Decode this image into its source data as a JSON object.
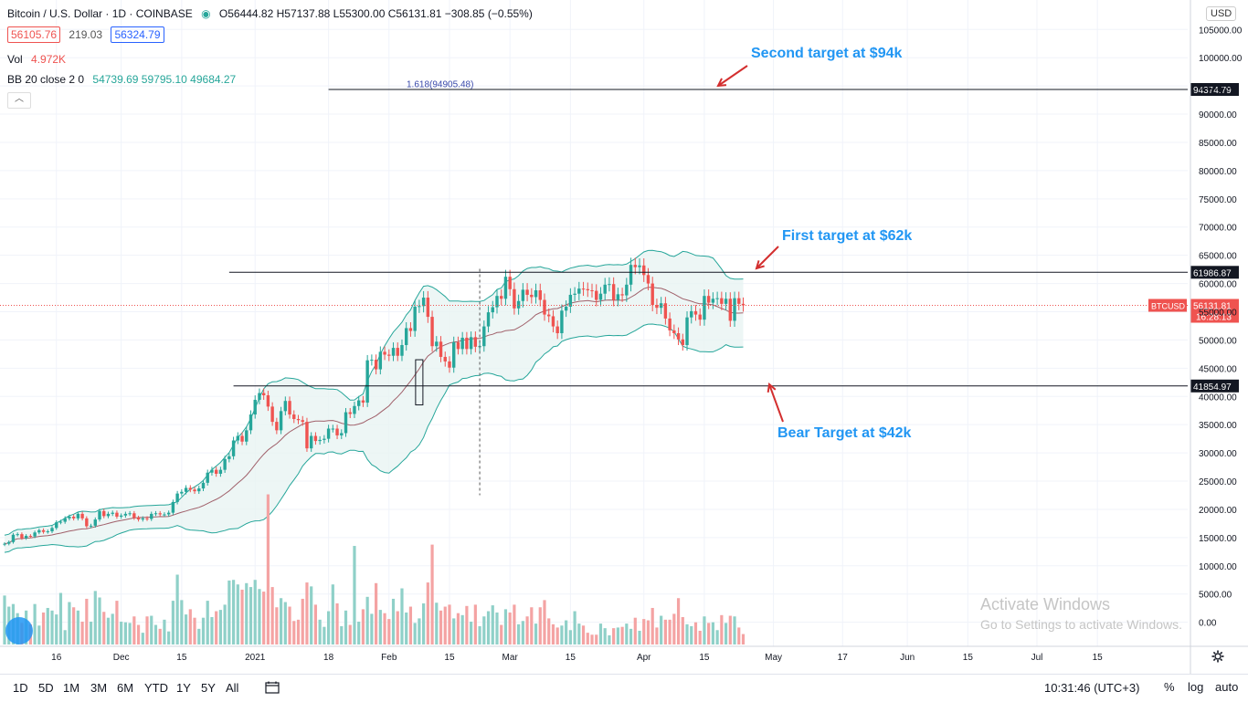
{
  "header": {
    "symbol": "Bitcoin / U.S. Dollar · 1D · COINBASE",
    "ohlc": "O56444.82  H57137.88  L55300.00  C56131.81  −308.85 (−0.55%)",
    "bid": "56105.76",
    "spread": "219.03",
    "ask": "56324.79",
    "vol_label": "Vol",
    "vol_value": "4.972K",
    "bb_label": "BB 20 close 2 0",
    "bb_values": "54739.69  59795.10  49684.27",
    "collapse_glyph": "︿",
    "currency": "USD"
  },
  "toolbar": {
    "timeframes": [
      "1D",
      "5D",
      "1M",
      "3M",
      "6M",
      "YTD",
      "1Y",
      "5Y",
      "All"
    ],
    "clock": "10:31:46 (UTC+3)",
    "percent": "%",
    "log": "log",
    "auto": "auto"
  },
  "watermark": {
    "line1": "Activate Windows",
    "line2": "Go to Settings to activate Windows."
  },
  "colors": {
    "up": "#26a69a",
    "down": "#ef5350",
    "band_fill": "#e8f4f2",
    "band_line": "#26a69a",
    "basis": "#a0606a",
    "annotation": "#2196f3",
    "arrow": "#d32f2f",
    "level": "#131722",
    "fib": "#3949ab"
  },
  "chart_data": {
    "type": "candlestick",
    "pair": "BTCUSD",
    "ylim": [
      -3000,
      107000
    ],
    "y_ticks": [
      "105000.00",
      "100000.00",
      "95000.00",
      "90000.00",
      "85000.00",
      "80000.00",
      "75000.00",
      "70000.00",
      "65000.00",
      "60000.00",
      "55000.00",
      "50000.00",
      "45000.00",
      "40000.00",
      "35000.00",
      "30000.00",
      "25000.00",
      "20000.00",
      "15000.00",
      "10000.00",
      "5000.00",
      "0.00"
    ],
    "x_ticks": [
      {
        "label": "16",
        "date": "2020-11-16"
      },
      {
        "label": "Dec",
        "date": "2020-12-01"
      },
      {
        "label": "15",
        "date": "2020-12-15"
      },
      {
        "label": "2021",
        "date": "2021-01-01"
      },
      {
        "label": "18",
        "date": "2021-01-18"
      },
      {
        "label": "Feb",
        "date": "2021-02-01"
      },
      {
        "label": "15",
        "date": "2021-02-15"
      },
      {
        "label": "Mar",
        "date": "2021-03-01"
      },
      {
        "label": "15",
        "date": "2021-03-15"
      },
      {
        "label": "Apr",
        "date": "2021-04-01"
      },
      {
        "label": "15",
        "date": "2021-04-15"
      },
      {
        "label": "May",
        "date": "2021-05-01"
      },
      {
        "label": "17",
        "date": "2021-05-17"
      },
      {
        "label": "Jun",
        "date": "2021-06-01"
      },
      {
        "label": "15",
        "date": "2021-06-15"
      },
      {
        "label": "Jul",
        "date": "2021-07-01"
      },
      {
        "label": "15",
        "date": "2021-07-15"
      }
    ],
    "start_date": "2020-11-04",
    "close": [
      13900,
      14200,
      15500,
      15600,
      14900,
      15300,
      15200,
      15900,
      16300,
      16000,
      16100,
      16700,
      17700,
      17800,
      18400,
      18700,
      18400,
      19200,
      18400,
      17000,
      17100,
      18200,
      19700,
      18800,
      19200,
      19400,
      18700,
      18900,
      19200,
      19300,
      18500,
      18200,
      18400,
      18300,
      19200,
      19300,
      19100,
      19100,
      19400,
      21300,
      22800,
      23100,
      23800,
      23500,
      23200,
      23700,
      24700,
      26500,
      27000,
      26300,
      27000,
      28900,
      29400,
      32200,
      33000,
      32000,
      34000,
      36800,
      39400,
      40600,
      40200,
      38200,
      35500,
      34000,
      37400,
      39200,
      36800,
      36000,
      35800,
      35500,
      30800,
      33000,
      32100,
      32300,
      32500,
      34300,
      34300,
      33100,
      33500,
      37200,
      36900,
      38300,
      39300,
      38900,
      46400,
      46500,
      44800,
      47900,
      47400,
      47200,
      48600,
      47200,
      49100,
      52100,
      51600,
      55900,
      56000,
      57500,
      54100,
      48900,
      49700,
      47000,
      46200,
      45100,
      49600,
      48400,
      50400,
      48400,
      50500,
      48800,
      48900,
      52400,
      54900,
      55800,
      57800,
      57300,
      61200,
      59000,
      55600,
      56900,
      58900,
      58000,
      57600,
      58800,
      57100,
      54500,
      54200,
      52400,
      51200,
      55200,
      55900,
      58000,
      58200,
      59100,
      59000,
      58800,
      58700,
      57100,
      58200,
      59800,
      59900,
      57100,
      58100,
      57900,
      59800,
      63300,
      62900,
      63200,
      61500,
      60000,
      56200,
      55700,
      56500,
      53800,
      51700,
      51200,
      50100,
      49100,
      54000,
      55100,
      54500,
      53600,
      57800,
      56600,
      57300,
      57400,
      56400,
      57300,
      53400,
      57400,
      56400,
      56131
    ],
    "volume": [
      7500,
      5800,
      6200,
      4800,
      3300,
      5200,
      3100,
      6200,
      2900,
      4900,
      5600,
      5200,
      4600,
      7900,
      2200,
      6500,
      5700,
      5200,
      3500,
      7000,
      3500,
      8200,
      7200,
      5000,
      4100,
      4700,
      6700,
      3500,
      3400,
      3300,
      4300,
      3000,
      1800,
      4300,
      4400,
      3000,
      2400,
      3800,
      2000,
      6700,
      10700,
      6800,
      4600,
      5400,
      4100,
      2400,
      4100,
      6700,
      4200,
      5100,
      5300,
      6100,
      9800,
      9900,
      9200,
      8400,
      9400,
      8800,
      9900,
      8500,
      8100,
      23000,
      8800,
      5700,
      7100,
      6500,
      5800,
      3600,
      3800,
      7000,
      9500,
      8900,
      6100,
      3800,
      2700,
      5100,
      9200,
      6300,
      2800,
      5200,
      3000,
      15100,
      3500,
      5400,
      7300,
      4700,
      9400,
      5300,
      4800,
      3900,
      7000,
      5100,
      8600,
      4900,
      5800,
      3300,
      4000,
      6300,
      9500,
      15300,
      6400,
      5200,
      5800,
      6100,
      4000,
      4800,
      4500,
      5900,
      3500,
      6100,
      2800,
      4300,
      5100,
      6000,
      4900,
      3000,
      5400,
      4900,
      6100,
      3100,
      3600,
      4300,
      5700,
      3200,
      5700,
      6800,
      4000,
      3100,
      2600,
      2900,
      3700,
      2200,
      5100,
      3200,
      2900,
      1800,
      1500,
      1500,
      3200,
      2500,
      1400,
      2500,
      2600,
      2700,
      3200,
      2400,
      4100,
      2100,
      3900,
      3700,
      5600,
      2600,
      4400,
      3800,
      3800,
      4700,
      7100,
      4200,
      3100,
      2800,
      3400,
      2100,
      4300,
      3300,
      3400,
      2200,
      4500,
      3300,
      4400,
      4300,
      2600,
      1600
    ],
    "levels": [
      {
        "value": 94374.79,
        "label": "94374.79",
        "from_date": "2021-01-18"
      },
      {
        "value": 61986.87,
        "label": "61986.87",
        "from_date": "2020-12-26"
      },
      {
        "value": 41854.97,
        "label": "41854.97",
        "from_date": "2020-12-27"
      }
    ],
    "fib_label": "1.618(94905.48)",
    "last_price_label": "56131.81",
    "countdown": "16:28:13",
    "pair_badge": "BTCUSD",
    "annotations": [
      {
        "text": "Second target at $94k"
      },
      {
        "text": "First target at $62k"
      },
      {
        "text": "Bear Target at $42k"
      }
    ]
  }
}
